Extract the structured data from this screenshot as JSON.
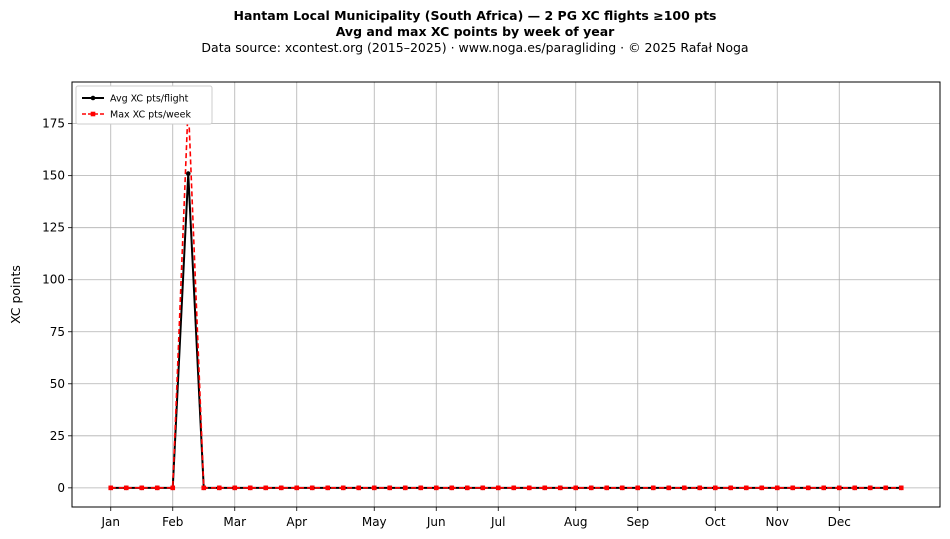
{
  "chart_data": {
    "type": "line",
    "title": "Hantam Local Municipality (South Africa)  —  2 PG XC flights ≥100 pts",
    "subtitle": "Avg and max XC points by week of year",
    "source_line": "Data source: xcontest.org (2015–2025)  ·  www.noga.es/paragliding  ·  © 2025 Rafał Noga",
    "xlabel": "",
    "ylabel": "XC points",
    "xlim": [
      -1.5,
      54.5
    ],
    "ylim": [
      -9.2,
      195
    ],
    "yticks": [
      0,
      25,
      50,
      75,
      100,
      125,
      150,
      175
    ],
    "month_ticks": [
      {
        "label": "Jan",
        "week": 1
      },
      {
        "label": "Feb",
        "week": 5
      },
      {
        "label": "Mar",
        "week": 9
      },
      {
        "label": "Apr",
        "week": 13
      },
      {
        "label": "May",
        "week": 18
      },
      {
        "label": "Jun",
        "week": 22
      },
      {
        "label": "Jul",
        "week": 26
      },
      {
        "label": "Aug",
        "week": 31
      },
      {
        "label": "Sep",
        "week": 35
      },
      {
        "label": "Oct",
        "week": 40
      },
      {
        "label": "Nov",
        "week": 44
      },
      {
        "label": "Dec",
        "week": 48
      }
    ],
    "x": [
      1,
      2,
      3,
      4,
      5,
      6,
      7,
      8,
      9,
      10,
      11,
      12,
      13,
      14,
      15,
      16,
      17,
      18,
      19,
      20,
      21,
      22,
      23,
      24,
      25,
      26,
      27,
      28,
      29,
      30,
      31,
      32,
      33,
      34,
      35,
      36,
      37,
      38,
      39,
      40,
      41,
      42,
      43,
      44,
      45,
      46,
      47,
      48,
      49,
      50,
      51,
      52
    ],
    "series": [
      {
        "name": "Avg XC pts/flight",
        "color": "#000000",
        "style": "solid",
        "marker": "circle",
        "values": [
          0,
          0,
          0,
          0,
          0,
          151,
          0,
          0,
          0,
          0,
          0,
          0,
          0,
          0,
          0,
          0,
          0,
          0,
          0,
          0,
          0,
          0,
          0,
          0,
          0,
          0,
          0,
          0,
          0,
          0,
          0,
          0,
          0,
          0,
          0,
          0,
          0,
          0,
          0,
          0,
          0,
          0,
          0,
          0,
          0,
          0,
          0,
          0,
          0,
          0,
          0,
          0
        ]
      },
      {
        "name": "Max XC pts/week",
        "color": "#ff0000",
        "style": "dashed",
        "marker": "square",
        "values": [
          0,
          0,
          0,
          0,
          0,
          185,
          0,
          0,
          0,
          0,
          0,
          0,
          0,
          0,
          0,
          0,
          0,
          0,
          0,
          0,
          0,
          0,
          0,
          0,
          0,
          0,
          0,
          0,
          0,
          0,
          0,
          0,
          0,
          0,
          0,
          0,
          0,
          0,
          0,
          0,
          0,
          0,
          0,
          0,
          0,
          0,
          0,
          0,
          0,
          0,
          0,
          0
        ]
      }
    ],
    "grid": true,
    "legend_position": "top-left"
  }
}
